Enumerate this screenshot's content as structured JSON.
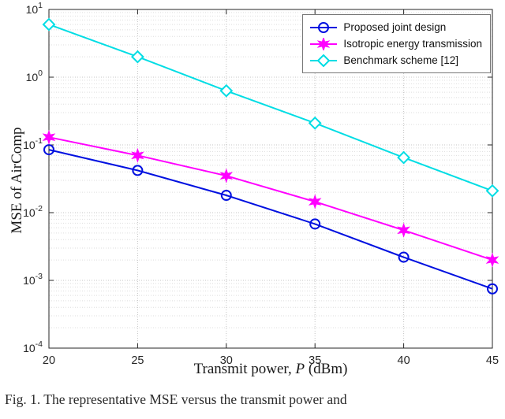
{
  "chart_data": {
    "type": "line",
    "x": [
      20,
      25,
      30,
      35,
      40,
      45
    ],
    "series": [
      {
        "name": "Proposed joint design",
        "color": "#0010e0",
        "marker": "circle",
        "values": [
          0.085,
          0.042,
          0.018,
          0.0068,
          0.0022,
          0.00075
        ]
      },
      {
        "name": "Isotropic energy transmission",
        "color": "#ff00ff",
        "marker": "hexagram",
        "values": [
          0.13,
          0.07,
          0.035,
          0.0145,
          0.0055,
          0.002
        ]
      },
      {
        "name": "Benchmark scheme [12]",
        "color": "#00dde4",
        "marker": "diamond",
        "values": [
          6.0,
          2.0,
          0.63,
          0.21,
          0.065,
          0.021
        ]
      }
    ],
    "xlabel_parts": {
      "prefix": "Transmit power, ",
      "var": "P",
      "suffix": " (dBm)"
    },
    "ylabel": "MSE of AirComp",
    "xlim": [
      20,
      45
    ],
    "ylim_exponents": [
      -4,
      1
    ],
    "xticks": [
      20,
      25,
      30,
      35,
      40,
      45
    ],
    "grid": true,
    "legend_position": "top-right"
  },
  "caption": "Fig. 1.  The representative MSE versus the transmit power and"
}
